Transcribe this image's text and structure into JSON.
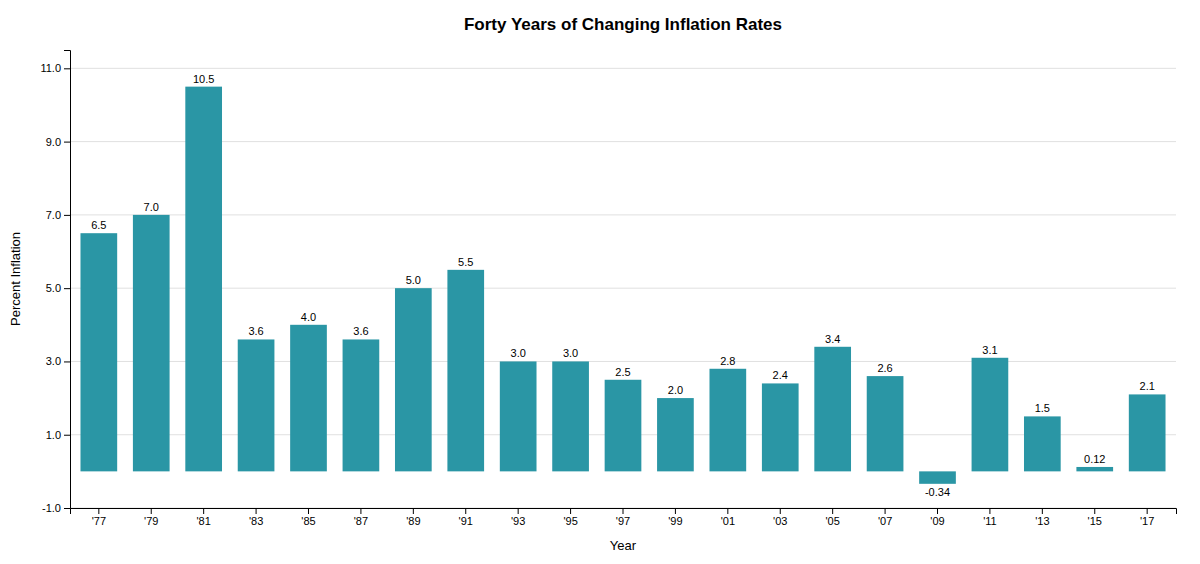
{
  "chart_data": {
    "type": "bar",
    "title": "Forty Years of Changing Inflation Rates",
    "xlabel": "Year",
    "ylabel": "Percent Inflation",
    "categories": [
      "'77",
      "'79",
      "'81",
      "'83",
      "'85",
      "'87",
      "'89",
      "'91",
      "'93",
      "'95",
      "'97",
      "'99",
      "'01",
      "'03",
      "'05",
      "'07",
      "'09",
      "'11",
      "'13",
      "'15",
      "'17"
    ],
    "values": [
      6.5,
      7.0,
      10.5,
      3.6,
      4.0,
      3.6,
      5.0,
      5.5,
      3.0,
      3.0,
      2.5,
      2.0,
      2.8,
      2.4,
      3.4,
      2.6,
      -0.34,
      3.1,
      1.5,
      0.12,
      2.1
    ],
    "value_labels": [
      "6.5",
      "7.0",
      "10.5",
      "3.6",
      "4.0",
      "3.6",
      "5.0",
      "5.5",
      "3.0",
      "3.0",
      "2.5",
      "2.0",
      "2.8",
      "2.4",
      "3.4",
      "2.6",
      "-0.34",
      "3.1",
      "1.5",
      "0.12",
      "2.1"
    ],
    "data_labels": true,
    "color": "#2a96a5",
    "ylim": [
      -1.0,
      11.5
    ],
    "yticks": [
      {
        "value": -1.0,
        "label": "-1.0"
      },
      {
        "value": 1.0,
        "label": "1.0"
      },
      {
        "value": 3.0,
        "label": "3.0"
      },
      {
        "value": 5.0,
        "label": "5.0"
      },
      {
        "value": 7.0,
        "label": "7.0"
      },
      {
        "value": 9.0,
        "label": "9.0"
      },
      {
        "value": 11.0,
        "label": "11.0"
      }
    ],
    "grid": true
  }
}
